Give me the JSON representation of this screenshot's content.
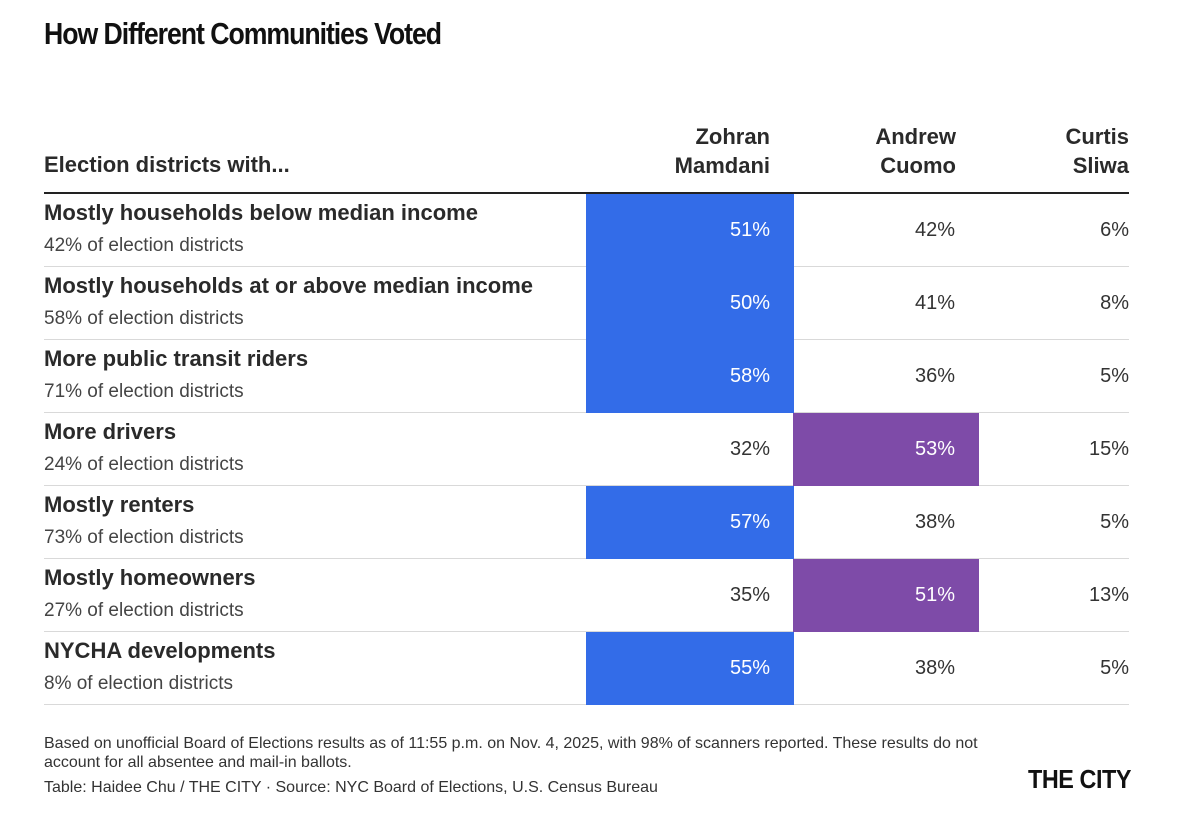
{
  "title": "How Different Communities Voted",
  "colors": {
    "mamdani_win": "#336CE8",
    "cuomo_win": "#7E4BA8"
  },
  "chart_data": {
    "type": "table",
    "row_header": "Election districts with...",
    "columns": [
      {
        "key": "mamdani",
        "line1": "Zohran",
        "line2": "Mamdani"
      },
      {
        "key": "cuomo",
        "line1": "Andrew",
        "line2": "Cuomo"
      },
      {
        "key": "sliwa",
        "line1": "Curtis",
        "line2": "Sliwa"
      }
    ],
    "rows": [
      {
        "label": "Mostly households below median income",
        "sub": "42% of election districts",
        "values": [
          "51%",
          "42%",
          "6%"
        ],
        "winner": 0
      },
      {
        "label": "Mostly households at or above median income",
        "sub": "58% of election districts",
        "values": [
          "50%",
          "41%",
          "8%"
        ],
        "winner": 0
      },
      {
        "label": "More public transit riders",
        "sub": "71% of election districts",
        "values": [
          "58%",
          "36%",
          "5%"
        ],
        "winner": 0
      },
      {
        "label": "More drivers",
        "sub": "24% of election districts",
        "values": [
          "32%",
          "53%",
          "15%"
        ],
        "winner": 1
      },
      {
        "label": "Mostly renters",
        "sub": "73% of election districts",
        "values": [
          "57%",
          "38%",
          "5%"
        ],
        "winner": 0
      },
      {
        "label": "Mostly homeowners",
        "sub": "27% of election districts",
        "values": [
          "35%",
          "51%",
          "13%"
        ],
        "winner": 1
      },
      {
        "label": "NYCHA developments",
        "sub": "8% of election districts",
        "values": [
          "55%",
          "38%",
          "5%"
        ],
        "winner": 0
      }
    ]
  },
  "footnote": "Based on unofficial Board of Elections results as of 11:55 p.m. on Nov. 4, 2025, with 98% of scanners reported. These results do not account for all absentee and mail-in ballots.",
  "credit": "Table: Haidee Chu / THE CITY · Source: NYC Board of Elections, U.S. Census Bureau",
  "logo": "THE CITY"
}
